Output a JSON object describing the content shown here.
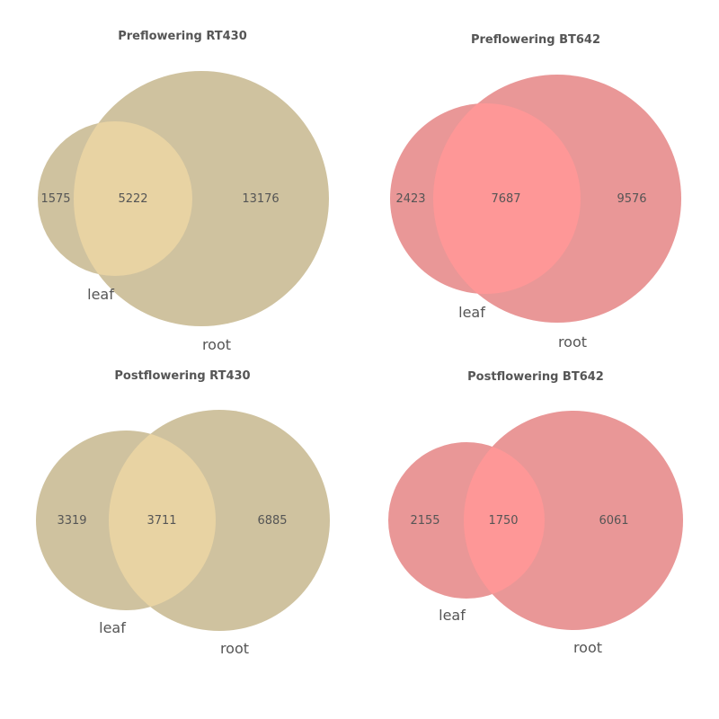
{
  "chart_data": [
    {
      "type": "venn",
      "title": "Preflowering RT430",
      "sets": [
        "leaf",
        "root"
      ],
      "counts": {
        "leaf_only": 1575,
        "both": 5222,
        "root_only": 13176
      },
      "colors": {
        "set": "#cfc29f",
        "overlap": "#e8d3a3"
      }
    },
    {
      "type": "venn",
      "title": "Preflowering BT642",
      "sets": [
        "leaf",
        "root"
      ],
      "counts": {
        "leaf_only": 2423,
        "both": 7687,
        "root_only": 9576
      },
      "colors": {
        "set": "#e99797",
        "overlap": "#fe9797"
      }
    },
    {
      "type": "venn",
      "title": "Postflowering RT430",
      "sets": [
        "leaf",
        "root"
      ],
      "counts": {
        "leaf_only": 3319,
        "both": 3711,
        "root_only": 6885
      },
      "colors": {
        "set": "#cfc29f",
        "overlap": "#e8d3a3"
      }
    },
    {
      "type": "venn",
      "title": "Postflowering BT642",
      "sets": [
        "leaf",
        "root"
      ],
      "counts": {
        "leaf_only": 2155,
        "both": 1750,
        "root_only": 6061
      },
      "colors": {
        "set": "#e99797",
        "overlap": "#fe9797"
      }
    }
  ]
}
